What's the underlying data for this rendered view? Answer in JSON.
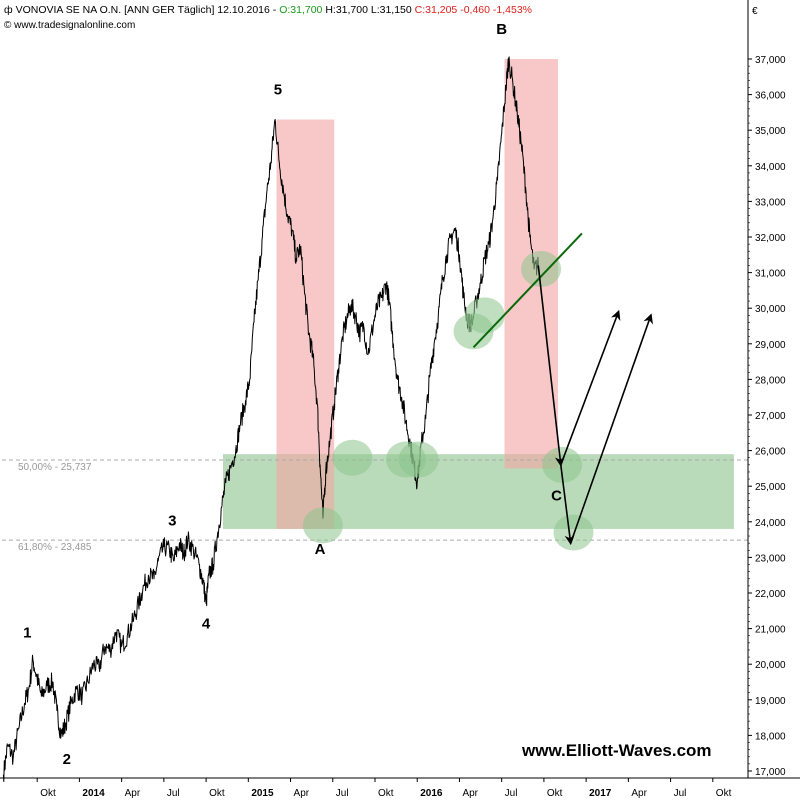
{
  "header": {
    "name": "VONOVIA SE NA O.N. [ANN GER",
    "period": "Täglich]",
    "date": "12.10.2016",
    "open": "O:31,700",
    "high": "H:31,700",
    "low": "L:31,150",
    "close": "C:31,205",
    "change": "-0,460",
    "change_pct": "-1,453%"
  },
  "source": "© www.tradesignalonline.com",
  "watermark": "www.Elliott-Waves.com",
  "colors": {
    "up": "#1a9a1a",
    "down": "#e0201a",
    "red_zone": "#f4a3a3",
    "green_zone": "#9ccc9c",
    "trendline": "#0a6a0a"
  },
  "chart_data": {
    "type": "line",
    "currency_label": "€",
    "y_ticks": [
      "17,000",
      "18,000",
      "19,000",
      "20,000",
      "21,000",
      "22,000",
      "23,000",
      "24,000",
      "25,000",
      "26,000",
      "27,000",
      "28,000",
      "29,000",
      "30,000",
      "31,000",
      "32,000",
      "33,000",
      "34,000",
      "35,000",
      "36,000",
      "37,000"
    ],
    "ylim": [
      16.8,
      38.5
    ],
    "x_ticks": [
      {
        "label": "Okt",
        "t": 1
      },
      {
        "label": "2014",
        "t": 4
      },
      {
        "label": "Apr",
        "t": 7
      },
      {
        "label": "Jul",
        "t": 10
      },
      {
        "label": "Okt",
        "t": 13
      },
      {
        "label": "2015",
        "t": 16
      },
      {
        "label": "Apr",
        "t": 19
      },
      {
        "label": "Jul",
        "t": 22
      },
      {
        "label": "Okt",
        "t": 25
      },
      {
        "label": "2016",
        "t": 28
      },
      {
        "label": "Apr",
        "t": 31
      },
      {
        "label": "Jul",
        "t": 34
      },
      {
        "label": "Okt",
        "t": 37
      },
      {
        "label": "2017",
        "t": 40
      },
      {
        "label": "Apr",
        "t": 43
      },
      {
        "label": "Jul",
        "t": 46
      },
      {
        "label": "Okt",
        "t": 49
      }
    ],
    "series": [
      {
        "values": [
          [
            -1.4,
            16.9
          ],
          [
            -1.1,
            17.7
          ],
          [
            -0.7,
            17.4
          ],
          [
            -0.3,
            18.2
          ],
          [
            0.1,
            18.9
          ],
          [
            0.4,
            19.3
          ],
          [
            0.7,
            20.1
          ],
          [
            1.0,
            19.6
          ],
          [
            1.3,
            19.1
          ],
          [
            1.7,
            19.4
          ],
          [
            2.1,
            19.5
          ],
          [
            2.4,
            18.7
          ],
          [
            2.7,
            18.0
          ],
          [
            3.0,
            18.3
          ],
          [
            3.4,
            18.9
          ],
          [
            3.8,
            19.3
          ],
          [
            4.2,
            19.1
          ],
          [
            4.6,
            19.5
          ],
          [
            5.0,
            20.0
          ],
          [
            5.4,
            19.9
          ],
          [
            5.8,
            20.5
          ],
          [
            6.2,
            20.4
          ],
          [
            6.6,
            20.9
          ],
          [
            7.0,
            20.5
          ],
          [
            7.4,
            20.8
          ],
          [
            7.8,
            21.2
          ],
          [
            8.2,
            21.7
          ],
          [
            8.5,
            22.1
          ],
          [
            8.9,
            22.5
          ],
          [
            9.3,
            22.4
          ],
          [
            9.6,
            22.9
          ],
          [
            10.0,
            23.3
          ],
          [
            10.4,
            23.2
          ],
          [
            10.7,
            22.9
          ],
          [
            11.1,
            23.4
          ],
          [
            11.4,
            23.1
          ],
          [
            11.7,
            23.5
          ],
          [
            12.1,
            23.2
          ],
          [
            12.5,
            22.8
          ],
          [
            12.8,
            22.3
          ],
          [
            13.0,
            21.7
          ],
          [
            13.2,
            22.5
          ],
          [
            13.5,
            22.8
          ],
          [
            13.8,
            23.6
          ],
          [
            14.1,
            24.4
          ],
          [
            14.4,
            25.1
          ],
          [
            14.8,
            25.6
          ],
          [
            15.1,
            26.0
          ],
          [
            15.4,
            26.7
          ],
          [
            15.8,
            27.4
          ],
          [
            16.1,
            28.0
          ],
          [
            16.4,
            29.6
          ],
          [
            16.7,
            30.8
          ],
          [
            17.0,
            32.0
          ],
          [
            17.3,
            33.2
          ],
          [
            17.6,
            34.1
          ],
          [
            17.9,
            35.3
          ],
          [
            18.2,
            34.1
          ],
          [
            18.5,
            33.3
          ],
          [
            18.8,
            32.6
          ],
          [
            19.1,
            32.2
          ],
          [
            19.4,
            31.4
          ],
          [
            19.7,
            31.7
          ],
          [
            20.0,
            30.4
          ],
          [
            20.3,
            29.3
          ],
          [
            20.6,
            28.6
          ],
          [
            20.9,
            27.3
          ],
          [
            21.1,
            25.6
          ],
          [
            21.3,
            24.1
          ],
          [
            21.5,
            25.4
          ],
          [
            21.8,
            26.3
          ],
          [
            22.1,
            27.3
          ],
          [
            22.4,
            28.3
          ],
          [
            22.7,
            29.2
          ],
          [
            23.0,
            29.7
          ],
          [
            23.3,
            30.1
          ],
          [
            23.6,
            29.8
          ],
          [
            23.9,
            29.3
          ],
          [
            24.2,
            29.5
          ],
          [
            24.5,
            28.7
          ],
          [
            24.9,
            29.6
          ],
          [
            25.2,
            30.1
          ],
          [
            25.5,
            30.3
          ],
          [
            25.8,
            30.7
          ],
          [
            26.0,
            30.2
          ],
          [
            26.3,
            29.0
          ],
          [
            26.6,
            28.0
          ],
          [
            26.9,
            27.5
          ],
          [
            27.2,
            26.8
          ],
          [
            27.5,
            26.2
          ],
          [
            27.8,
            25.5
          ],
          [
            28.0,
            25.1
          ],
          [
            28.3,
            26.2
          ],
          [
            28.6,
            26.9
          ],
          [
            28.9,
            28.1
          ],
          [
            29.2,
            29.0
          ],
          [
            29.5,
            29.8
          ],
          [
            29.8,
            30.8
          ],
          [
            30.1,
            31.5
          ],
          [
            30.4,
            32.0
          ],
          [
            30.7,
            32.2
          ],
          [
            31.0,
            31.5
          ],
          [
            31.3,
            30.3
          ],
          [
            31.6,
            29.6
          ],
          [
            31.9,
            29.6
          ],
          [
            32.2,
            30.2
          ],
          [
            32.5,
            30.7
          ],
          [
            32.8,
            31.4
          ],
          [
            33.1,
            31.8
          ],
          [
            33.4,
            32.6
          ],
          [
            33.7,
            33.6
          ],
          [
            34.0,
            34.9
          ],
          [
            34.3,
            36.2
          ],
          [
            34.5,
            37.0
          ],
          [
            34.8,
            36.3
          ],
          [
            35.1,
            35.5
          ],
          [
            35.4,
            34.6
          ],
          [
            35.7,
            33.4
          ],
          [
            36.0,
            32.0
          ],
          [
            36.3,
            31.1
          ],
          [
            36.6,
            31.2
          ]
        ]
      }
    ],
    "annotations": {
      "wave_labels": [
        {
          "label": "1",
          "t": 0.3,
          "v": 20.75
        },
        {
          "label": "2",
          "t": 3.1,
          "v": 17.2
        },
        {
          "label": "3",
          "t": 10.6,
          "v": 23.9
        },
        {
          "label": "4",
          "t": 13.0,
          "v": 21.0
        },
        {
          "label": "5",
          "t": 18.1,
          "v": 36.0
        },
        {
          "label": "A",
          "t": 21.1,
          "v": 23.1
        },
        {
          "label": "B",
          "t": 34.0,
          "v": 37.7
        },
        {
          "label": "C",
          "t": 37.9,
          "v": 24.6
        }
      ],
      "fib_lines": [
        {
          "label": "50,00% - 25,737",
          "v": 25.737
        },
        {
          "label": "61,80% - 23,485",
          "v": 23.485
        }
      ],
      "red_zones": [
        {
          "t0": 18.0,
          "t1": 22.1,
          "v0": 23.8,
          "v1": 35.3
        },
        {
          "t0": 34.2,
          "t1": 38.0,
          "v0": 25.5,
          "v1": 37.0
        }
      ],
      "green_zone": {
        "t0": 14.2,
        "t1": 50.5,
        "v0": 23.8,
        "v1": 25.9
      },
      "circles": [
        {
          "t": 21.3,
          "v": 23.9
        },
        {
          "t": 23.4,
          "v": 25.8
        },
        {
          "t": 27.2,
          "v": 25.75
        },
        {
          "t": 28.1,
          "v": 25.75
        },
        {
          "t": 32.0,
          "v": 29.35
        },
        {
          "t": 32.8,
          "v": 29.8
        },
        {
          "t": 36.8,
          "v": 31.1
        },
        {
          "t": 38.3,
          "v": 25.6
        },
        {
          "t": 39.1,
          "v": 23.7
        }
      ],
      "trendline": {
        "t0": 32.0,
        "v0": 28.9,
        "t1": 39.7,
        "v1": 32.1
      },
      "arrows": [
        {
          "t0": 36.6,
          "v0": 31.2,
          "t1": 38.2,
          "v1": 25.6
        },
        {
          "t0": 38.2,
          "v0": 25.6,
          "t1": 42.3,
          "v1": 29.9
        },
        {
          "t0": 38.2,
          "v0": 25.6,
          "t1": 38.9,
          "v1": 23.4
        },
        {
          "t0": 38.9,
          "v0": 23.4,
          "t1": 44.6,
          "v1": 29.8
        }
      ]
    }
  }
}
